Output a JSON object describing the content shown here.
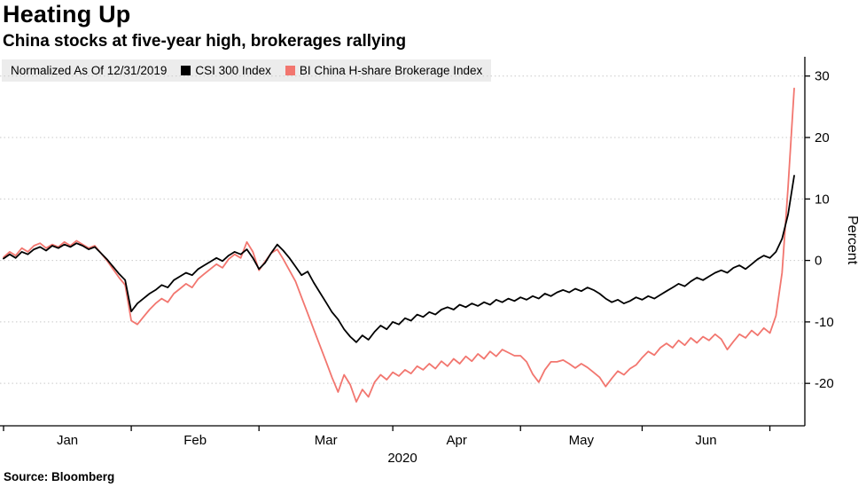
{
  "header": {
    "title": "Heating Up",
    "subtitle": "China stocks at five-year high, brokerages rallying"
  },
  "legend": {
    "note": "Normalized As Of 12/31/2019",
    "items": [
      {
        "label": "CSI 300 Index",
        "color": "#000000"
      },
      {
        "label": "BI China H-share Brokerage Index",
        "color": "#f2766f"
      }
    ]
  },
  "source": {
    "label": "Source: Bloomberg"
  },
  "chart_data": {
    "type": "line",
    "title": "Heating Up",
    "subtitle": "China stocks at five-year high, brokerages rallying",
    "note": "Normalized As Of 12/31/2019",
    "ylabel": "Percent",
    "ylim": [
      -26.9,
      32.7
    ],
    "y_ticks": [
      30,
      20,
      10,
      0,
      -10,
      -20
    ],
    "grid": "horizontal-dotted",
    "legend_position": "top-left",
    "x_axis": {
      "year": "2020",
      "month_labels": [
        "Jan",
        "Feb",
        "Mar",
        "Apr",
        "May",
        "Jun"
      ],
      "month_boundary_indices": [
        0,
        21,
        42,
        64,
        85,
        105,
        126
      ]
    },
    "series": [
      {
        "name": "CSI 300 Index",
        "color": "#000000",
        "values": [
          0.3,
          1.0,
          0.4,
          1.4,
          1.0,
          1.8,
          2.2,
          1.6,
          2.4,
          2.0,
          2.6,
          2.2,
          2.8,
          2.4,
          1.8,
          2.2,
          1.2,
          0.2,
          -1.0,
          -2.2,
          -3.2,
          -8.3,
          -7.0,
          -6.2,
          -5.4,
          -4.8,
          -4.0,
          -4.4,
          -3.2,
          -2.6,
          -2.0,
          -2.4,
          -1.4,
          -0.8,
          -0.2,
          0.4,
          -0.1,
          0.8,
          1.4,
          1.0,
          1.8,
          0.4,
          -1.4,
          -0.4,
          1.2,
          2.6,
          1.6,
          0.4,
          -1.0,
          -2.4,
          -1.8,
          -3.6,
          -5.2,
          -6.8,
          -8.4,
          -9.6,
          -11.2,
          -12.4,
          -13.3,
          -12.2,
          -12.9,
          -11.6,
          -10.6,
          -11.2,
          -10.0,
          -10.4,
          -9.4,
          -9.8,
          -8.8,
          -9.2,
          -8.4,
          -8.8,
          -8.0,
          -7.6,
          -8.0,
          -7.2,
          -7.6,
          -7.0,
          -7.4,
          -6.8,
          -7.2,
          -6.4,
          -6.8,
          -6.2,
          -6.6,
          -6.0,
          -6.4,
          -5.8,
          -6.2,
          -5.4,
          -5.8,
          -5.2,
          -4.8,
          -5.2,
          -4.6,
          -5.0,
          -4.4,
          -4.8,
          -5.4,
          -6.2,
          -6.8,
          -6.4,
          -7.0,
          -6.6,
          -6.0,
          -6.4,
          -5.8,
          -6.2,
          -5.6,
          -5.0,
          -4.4,
          -3.8,
          -4.2,
          -3.4,
          -2.8,
          -3.2,
          -2.6,
          -2.0,
          -1.6,
          -2.0,
          -1.2,
          -0.8,
          -1.4,
          -0.6,
          0.2,
          0.8,
          0.4,
          1.4,
          3.5,
          7.5,
          13.8
        ]
      },
      {
        "name": "BI China H-share Brokerage Index",
        "color": "#f2766f",
        "values": [
          0.5,
          1.4,
          0.8,
          2.0,
          1.4,
          2.4,
          2.8,
          2.0,
          2.6,
          2.2,
          3.0,
          2.4,
          3.2,
          2.6,
          2.0,
          2.4,
          1.2,
          0.0,
          -1.4,
          -2.8,
          -4.0,
          -9.8,
          -10.4,
          -9.2,
          -8.0,
          -7.0,
          -6.2,
          -6.8,
          -5.4,
          -4.6,
          -3.8,
          -4.4,
          -3.0,
          -2.2,
          -1.4,
          -0.6,
          -1.2,
          0.2,
          1.0,
          0.4,
          3.0,
          1.4,
          -1.6,
          -0.2,
          1.2,
          1.8,
          0.2,
          -1.6,
          -3.4,
          -6.0,
          -8.6,
          -11.2,
          -13.8,
          -16.4,
          -19.0,
          -21.4,
          -18.6,
          -20.2,
          -23.0,
          -21.0,
          -22.2,
          -19.8,
          -18.6,
          -19.4,
          -18.2,
          -18.8,
          -17.8,
          -18.4,
          -17.2,
          -17.8,
          -16.8,
          -17.6,
          -16.4,
          -17.2,
          -16.0,
          -16.8,
          -15.6,
          -16.4,
          -15.2,
          -16.0,
          -14.8,
          -15.6,
          -14.5,
          -15.0,
          -15.5,
          -15.5,
          -16.5,
          -18.5,
          -19.8,
          -17.8,
          -16.5,
          -16.5,
          -16.2,
          -16.8,
          -17.5,
          -16.8,
          -17.4,
          -18.2,
          -19.0,
          -20.5,
          -19.2,
          -18.0,
          -18.6,
          -17.6,
          -17.0,
          -15.8,
          -14.8,
          -15.4,
          -14.2,
          -13.5,
          -14.2,
          -13.0,
          -13.8,
          -12.6,
          -13.4,
          -12.4,
          -13.0,
          -12.0,
          -12.8,
          -14.5,
          -13.2,
          -12.0,
          -12.6,
          -11.4,
          -12.2,
          -11.0,
          -11.8,
          -9.0,
          -2.0,
          12.0,
          28.0
        ]
      }
    ]
  }
}
